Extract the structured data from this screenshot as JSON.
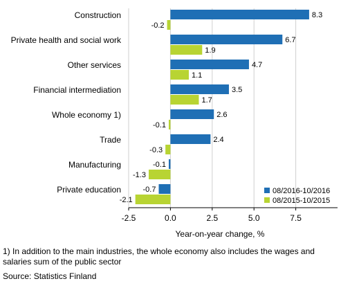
{
  "chart_data": {
    "type": "bar",
    "orientation": "horizontal",
    "categories": [
      "Construction",
      "Private health and social work",
      "Other services",
      "Financial intermediation",
      "Whole economy 1)",
      "Trade",
      "Manufacturing",
      "Private education"
    ],
    "series": [
      {
        "name": "08/2016-10/2016",
        "values": [
          8.3,
          6.7,
          4.7,
          3.5,
          2.6,
          2.4,
          -0.1,
          -0.7
        ],
        "labels": [
          "8.3",
          "6.7",
          "4.7",
          "3.5",
          "2.6",
          "2.4",
          "-0.1",
          "-0.7"
        ],
        "color": "#1f6fb5"
      },
      {
        "name": "08/2015-10/2015",
        "values": [
          -0.2,
          1.9,
          1.1,
          1.7,
          -0.1,
          -0.3,
          -1.3,
          -2.1
        ],
        "labels": [
          "-0.2",
          "1.9",
          "1.1",
          "1.7",
          "-0.1",
          "-0.3",
          "-1.3",
          "-2.1"
        ],
        "color": "#b8d433"
      }
    ],
    "xlabel": "Year-on-year change, %",
    "xlim": [
      -2.5,
      10
    ],
    "xticks": [
      -2.5,
      0,
      2.5,
      5,
      7.5
    ],
    "xtick_labels": [
      "-2.5",
      "0.0",
      "2.5",
      "5.0",
      "7.5"
    ],
    "grid": true,
    "legend_position": "bottom-right"
  },
  "footnote": "1) In addition to the main industries, the whole economy also includes the wages and salaries sum of the public sector",
  "source": "Source: Statistics Finland"
}
